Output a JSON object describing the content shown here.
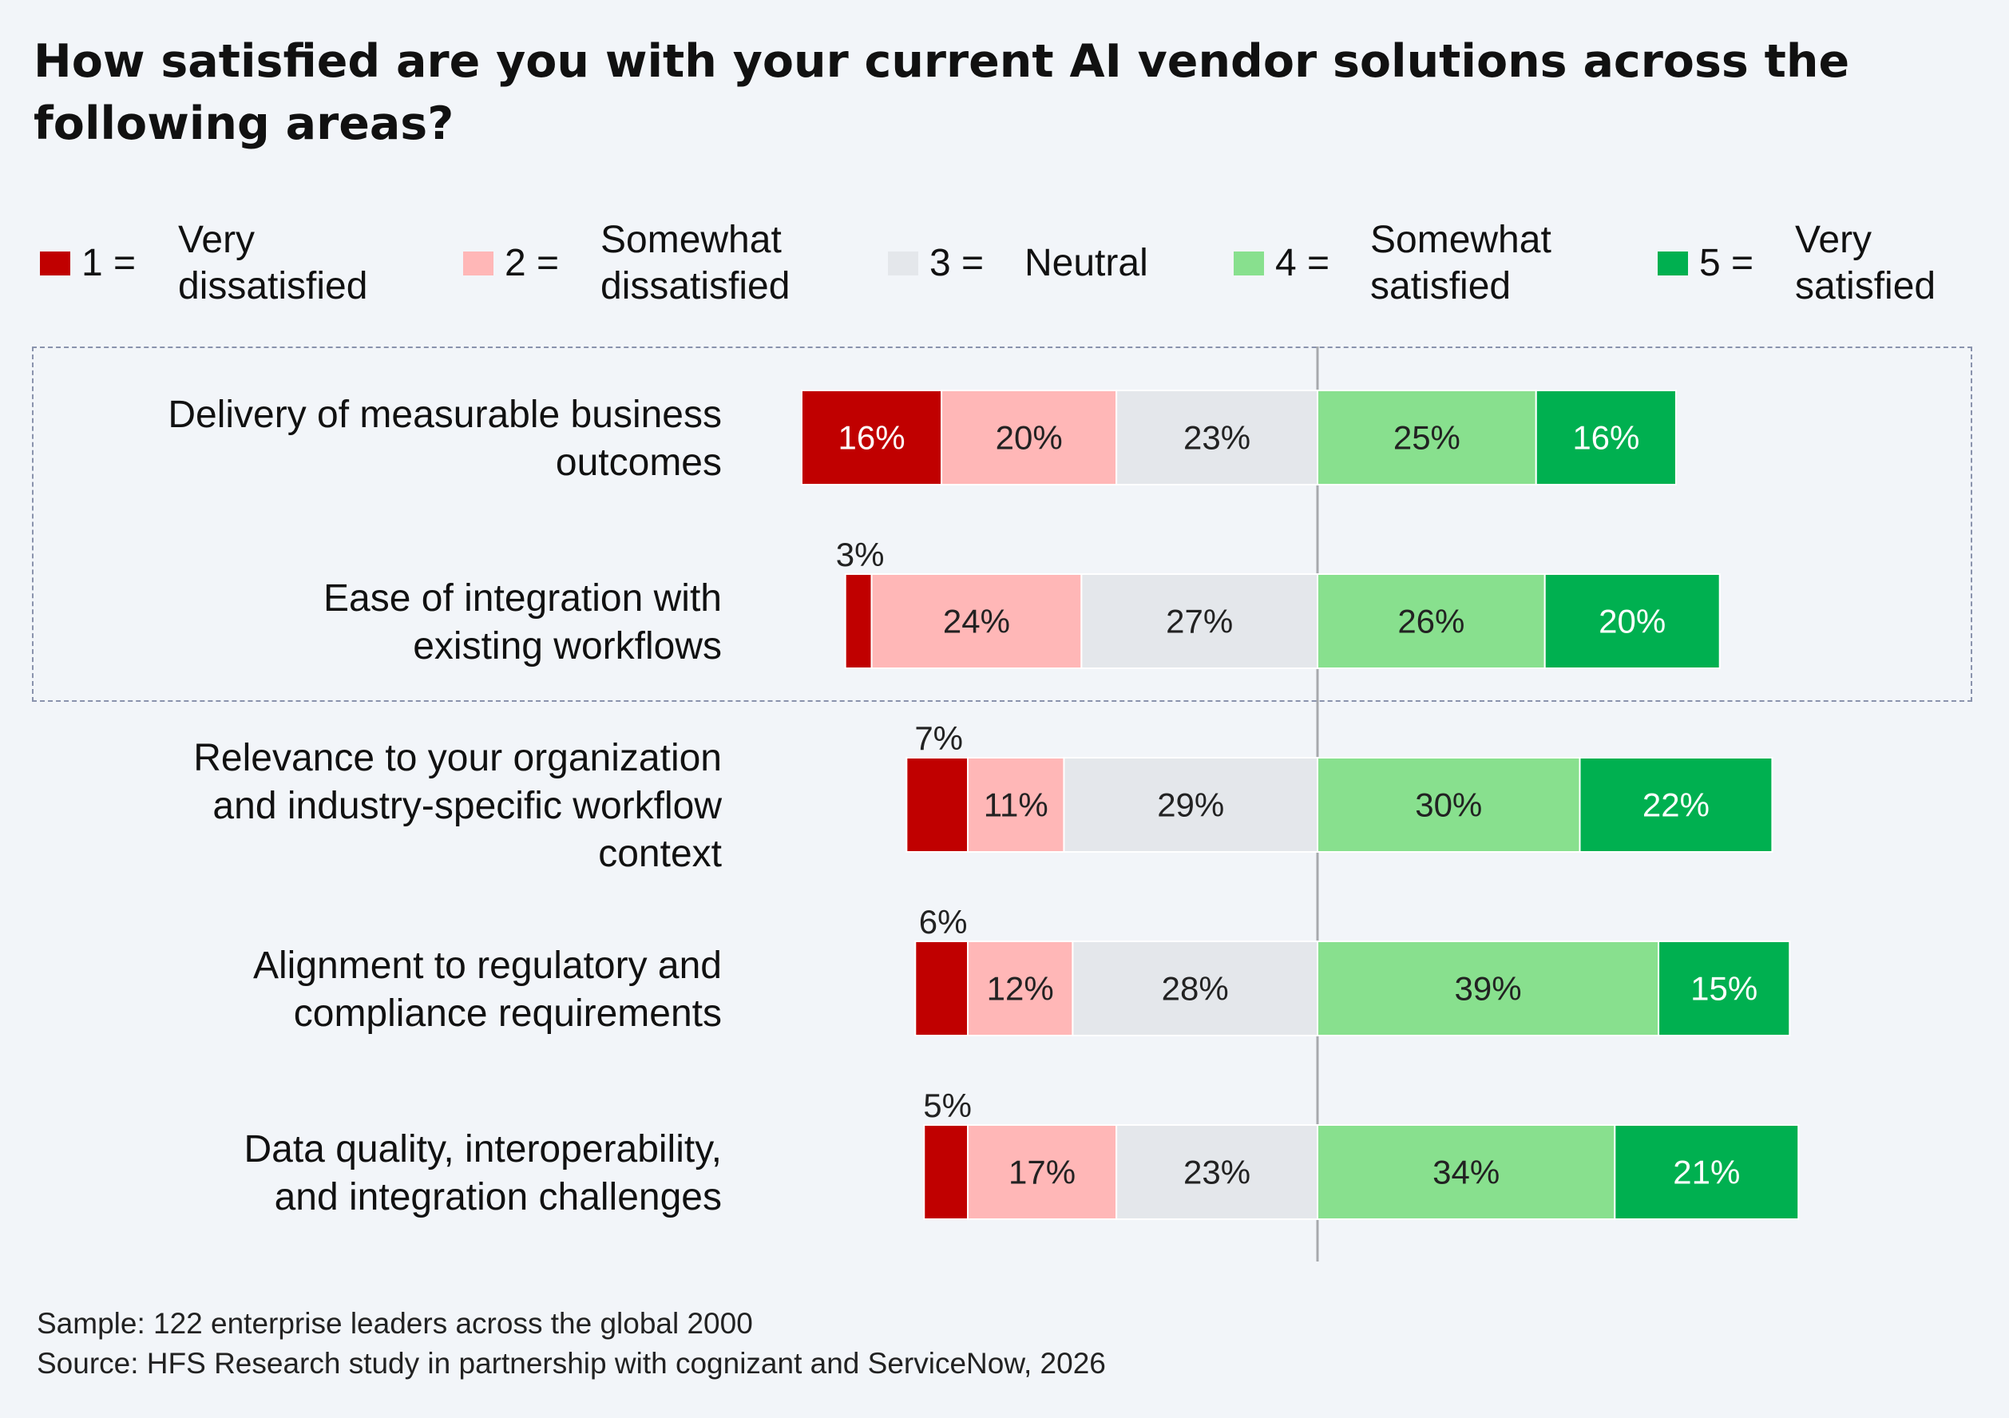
{
  "title": "How satisfied are you with your current AI vendor solutions across the following areas?",
  "legend": [
    {
      "code": "1 =",
      "label": "Very\ndissatisfied",
      "color": "#c00000"
    },
    {
      "code": "2 =",
      "label": "Somewhat\ndissatisfied",
      "color": "#ffb7b7"
    },
    {
      "code": "3 =",
      "label": "Neutral",
      "color": "#e4e7eb"
    },
    {
      "code": "4 =",
      "label": "Somewhat\nsatisfied",
      "color": "#88e08e"
    },
    {
      "code": "5 =",
      "label": "Very\nsatisfied",
      "color": "#00b050"
    }
  ],
  "colors": {
    "neutral_divider": "#a7a9ad",
    "highlight_border": "#8a93ad",
    "label_light": "#ffffff",
    "label_dark": "#222222"
  },
  "chart_data": {
    "type": "bar",
    "orientation": "horizontal",
    "stacking": "diverging",
    "value_suffix": "%",
    "categories": [
      "Delivery of measurable business outcomes",
      "Ease of integration with existing workflows",
      "Relevance to your organization and industry-specific workflow context",
      "Alignment to regulatory and compliance requirements",
      "Data quality, interoperability, and integration challenges"
    ],
    "series": [
      {
        "name": "Very dissatisfied",
        "values": [
          16,
          3,
          7,
          6,
          5
        ]
      },
      {
        "name": "Somewhat dissatisfied",
        "values": [
          20,
          24,
          11,
          12,
          17
        ]
      },
      {
        "name": "Neutral",
        "values": [
          23,
          27,
          29,
          28,
          23
        ]
      },
      {
        "name": "Somewhat satisfied",
        "values": [
          25,
          26,
          30,
          39,
          34
        ]
      },
      {
        "name": "Very satisfied",
        "values": [
          16,
          20,
          22,
          15,
          21
        ]
      }
    ],
    "highlighted_categories": [
      0,
      1
    ],
    "legend_position": "top",
    "grid": false
  },
  "footnotes": {
    "sample": "Sample: 122 enterprise leaders across the global 2000",
    "source": "Source: HFS Research study in partnership with cognizant and ServiceNow, 2026"
  }
}
